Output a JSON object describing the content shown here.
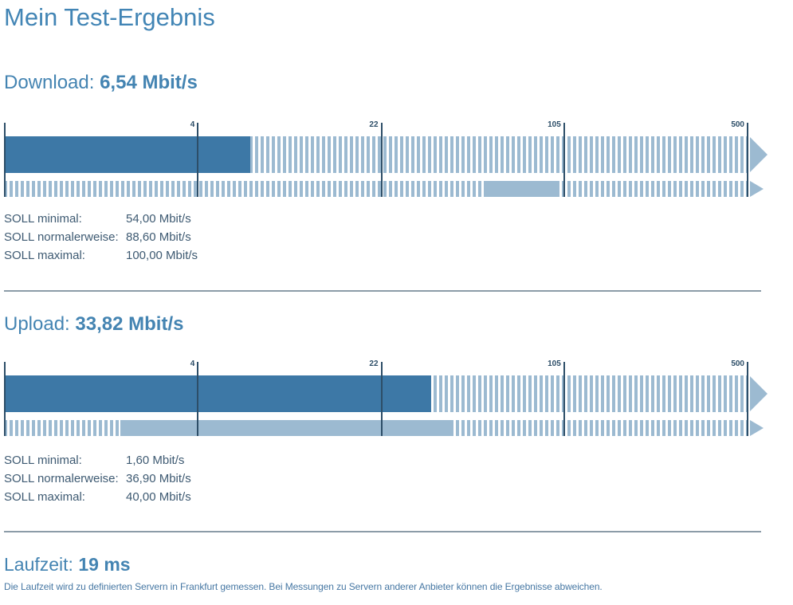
{
  "page": {
    "title": "Mein Test-Ergebnis"
  },
  "sections": {
    "download": {
      "heading_label": "Download:",
      "heading_value": "6,54 Mbit/s",
      "soll_rows": [
        {
          "label": "SOLL minimal:",
          "value": "54,00 Mbit/s"
        },
        {
          "label": "SOLL normalerweise:",
          "value": "88,60 Mbit/s"
        },
        {
          "label": "SOLL maximal:",
          "value": "100,00 Mbit/s"
        }
      ]
    },
    "upload": {
      "heading_label": "Upload:",
      "heading_value": "33,82 Mbit/s",
      "soll_rows": [
        {
          "label": "SOLL minimal:",
          "value": "1,60 Mbit/s"
        },
        {
          "label": "SOLL normalerweise:",
          "value": "36,90 Mbit/s"
        },
        {
          "label": "SOLL maximal:",
          "value": "40,00 Mbit/s"
        }
      ]
    },
    "laufzeit": {
      "heading_label": "Laufzeit:",
      "heading_value": "19 ms",
      "note": "Die Laufzeit wird zu definierten Servern in Frankfurt gemessen. Bei Messungen zu Servern anderer Anbieter können die Ergebnisse abweichen."
    }
  },
  "colors": {
    "heading_blue": "#4484b2",
    "bar_dark_blue": "#3d78a6",
    "bar_light_blue": "#9cbad1",
    "tick_navy": "#2d4e68",
    "divider_gray": "#8c9ca8",
    "soll_text": "#3e5a72",
    "note_text": "#4677a3"
  },
  "chart_data": [
    {
      "type": "bar",
      "name": "download-speed-scale",
      "orientation": "horizontal",
      "unit": "Mbit/s",
      "measured_mbit": 6.54,
      "soll_min_mbit": 54.0,
      "soll_normal_mbit": 88.6,
      "soll_max_mbit": 100.0,
      "bars": [
        {
          "name": "measured",
          "style": "solid dark fill from 0 to measured value over striped track"
        },
        {
          "name": "soll-range",
          "style": "solid light fill from soll_min to soll_max over striped track"
        }
      ],
      "axis": {
        "scale": "piecewise-log",
        "min": 0.4,
        "ticks": [
          4,
          22,
          105,
          500
        ],
        "anchor_percents": [
          0,
          26,
          50.7,
          75.3,
          100
        ],
        "grid": false
      }
    },
    {
      "type": "bar",
      "name": "upload-speed-scale",
      "orientation": "horizontal",
      "unit": "Mbit/s",
      "measured_mbit": 33.82,
      "soll_min_mbit": 1.6,
      "soll_normal_mbit": 36.9,
      "soll_max_mbit": 40.0,
      "bars": [
        {
          "name": "measured",
          "style": "solid dark fill from 0 to measured value over striped track"
        },
        {
          "name": "soll-range",
          "style": "solid light fill from soll_min to soll_max over striped track"
        }
      ],
      "axis": {
        "scale": "piecewise-log",
        "min": 0.4,
        "ticks": [
          4,
          22,
          105,
          500
        ],
        "anchor_percents": [
          0,
          26,
          50.7,
          75.3,
          100
        ],
        "grid": false
      }
    }
  ]
}
